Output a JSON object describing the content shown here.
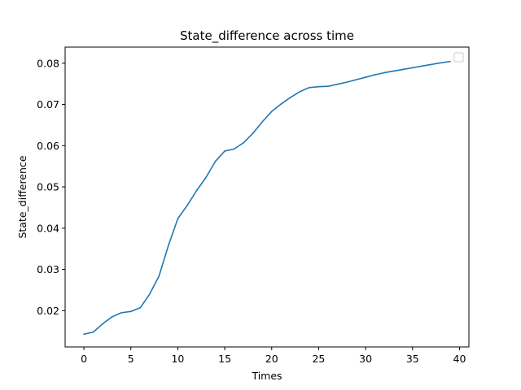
{
  "chart_data": {
    "type": "line",
    "title": "State_difference across time",
    "xlabel": "Times",
    "ylabel": "State_difference",
    "xlim": [
      -2,
      41
    ],
    "ylim": [
      0.0112,
      0.0839
    ],
    "xticks": [
      0,
      5,
      10,
      15,
      20,
      25,
      30,
      35,
      40
    ],
    "yticks": [
      0.02,
      0.03,
      0.04,
      0.05,
      0.06,
      0.07,
      0.08
    ],
    "ytick_labels": [
      "0.02",
      "0.03",
      "0.04",
      "0.05",
      "0.06",
      "0.07",
      "0.08"
    ],
    "grid": false,
    "legend": "top-right",
    "series": [
      {
        "color": "#1f77b4",
        "x": [
          0,
          1,
          2,
          3,
          4,
          5,
          6,
          7,
          8,
          9,
          10,
          11,
          12,
          13,
          14,
          15,
          16,
          17,
          18,
          19,
          20,
          21,
          22,
          23,
          24,
          25,
          26,
          27,
          28,
          29,
          30,
          31,
          32,
          33,
          34,
          35,
          36,
          37,
          38,
          39
        ],
        "values": [
          0.0143,
          0.0148,
          0.0168,
          0.0185,
          0.0195,
          0.0198,
          0.0207,
          0.024,
          0.0284,
          0.0358,
          0.0423,
          0.0455,
          0.0491,
          0.0523,
          0.0562,
          0.0587,
          0.0592,
          0.0607,
          0.063,
          0.0658,
          0.0683,
          0.0701,
          0.0717,
          0.0731,
          0.0741,
          0.0743,
          0.0744,
          0.0749,
          0.0754,
          0.076,
          0.0766,
          0.0772,
          0.0777,
          0.0781,
          0.0785,
          0.0789,
          0.0793,
          0.0797,
          0.0801,
          0.0804
        ]
      }
    ]
  }
}
